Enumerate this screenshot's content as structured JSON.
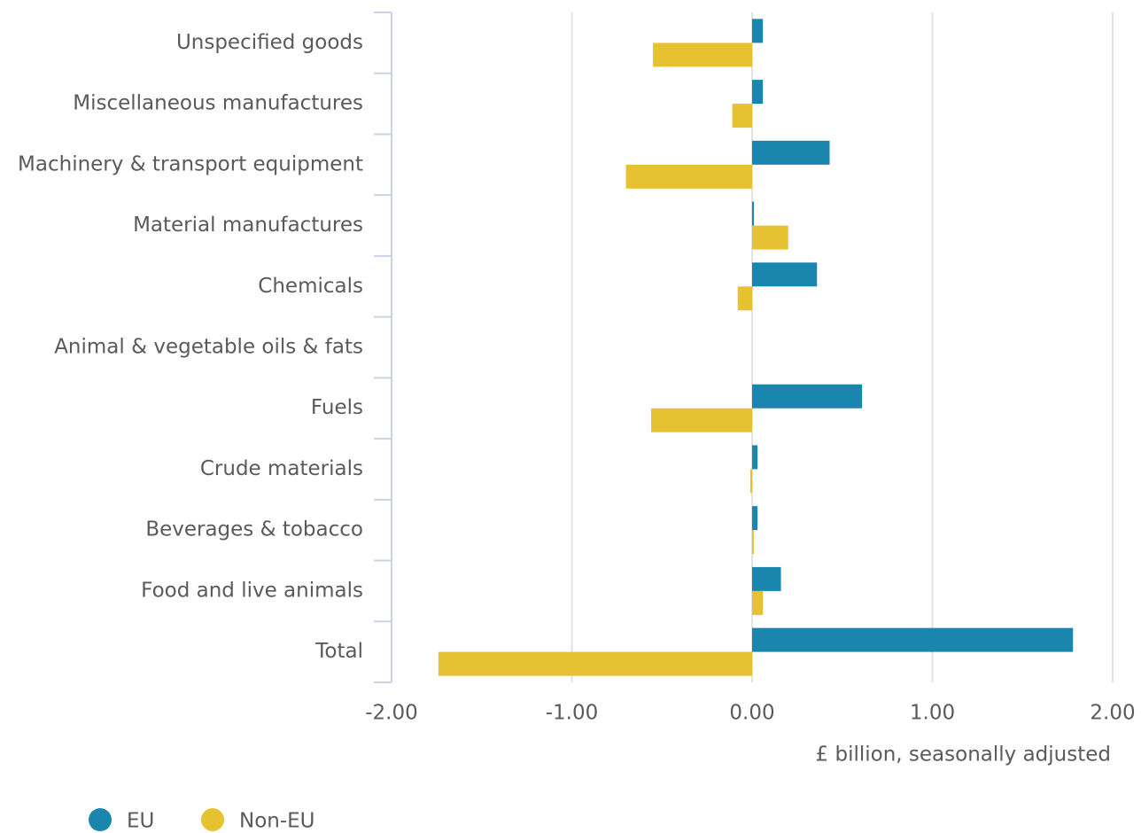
{
  "chart_data": {
    "type": "bar",
    "orientation": "horizontal",
    "categories": [
      "Unspecified goods",
      "Miscellaneous manufactures",
      "Machinery & transport equipment",
      "Material manufactures",
      "Chemicals",
      "Animal & vegetable oils & fats",
      "Fuels",
      "Crude materials",
      "Beverages & tobacco",
      "Food and live animals",
      "Total"
    ],
    "series": [
      {
        "name": "EU",
        "color": "#1a85ad",
        "values": [
          0.06,
          0.06,
          0.43,
          0.01,
          0.36,
          0,
          0.61,
          0.03,
          0.03,
          0.16,
          1.78
        ]
      },
      {
        "name": "Non-EU",
        "color": "#e6c232",
        "values": [
          -0.55,
          -0.11,
          -0.7,
          0.2,
          -0.08,
          0,
          -0.56,
          -0.01,
          0.01,
          0.06,
          -1.74
        ]
      }
    ],
    "xlim": [
      -2,
      2
    ],
    "xticks": [
      {
        "value": -2,
        "label": "-2.00"
      },
      {
        "value": -1,
        "label": "-1.00"
      },
      {
        "value": 0,
        "label": "0.00"
      },
      {
        "value": 1,
        "label": "1.00"
      },
      {
        "value": 2,
        "label": "2.00"
      }
    ],
    "x_label": "£ billion, seasonally adjusted",
    "grid": true,
    "legend": "bottom-left"
  }
}
